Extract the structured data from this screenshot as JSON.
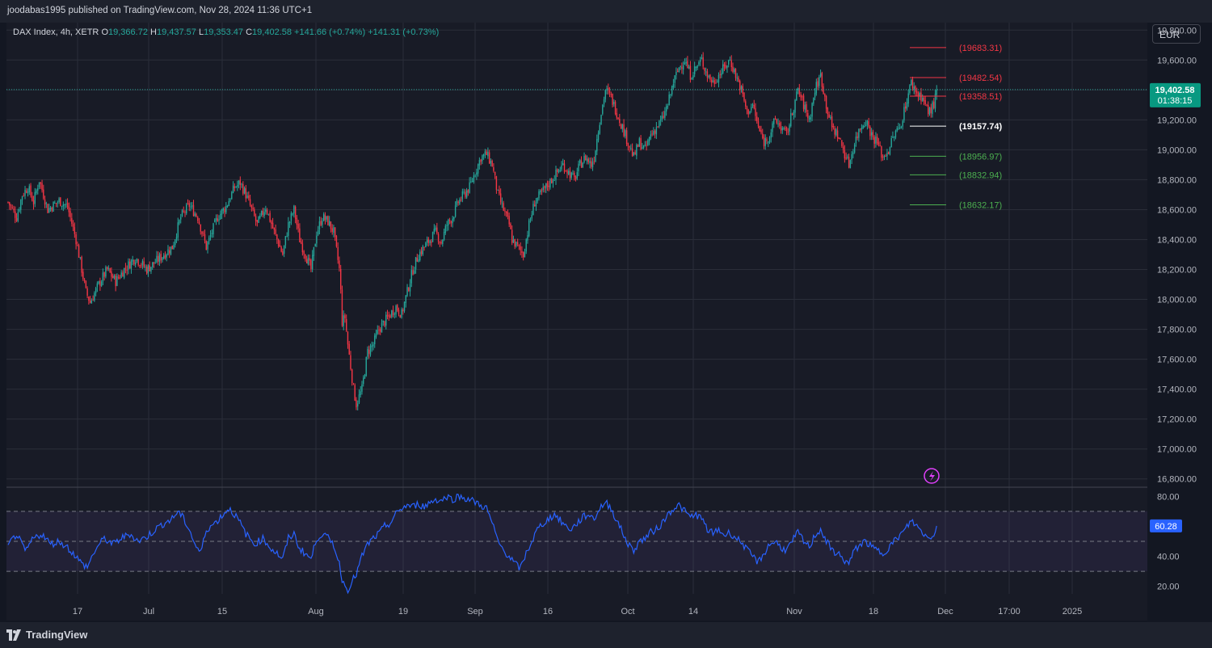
{
  "header": {
    "publisher": "joodabas1995 published on TradingView.com, Nov 28, 2024 11:36 UTC+1"
  },
  "legend": {
    "symbol": "DAX Index, 4h, XETR",
    "open_label": "O",
    "open": "19,366.72",
    "high_label": "H",
    "high": "19,437.57",
    "low_label": "L",
    "low": "19,353.47",
    "close_label": "C",
    "close": "19,402.58",
    "change": "+141.66 (+0.74%)",
    "change2": "+141.31 (+0.73%)"
  },
  "currency": "EUR",
  "footer": {
    "brand": "TradingView"
  },
  "colors": {
    "up": "#26a69a",
    "down": "#f23645",
    "rsi": "#2962ff",
    "bg": "#131722",
    "panel": "#181b26",
    "grid": "#2a2e39",
    "price_badge": "#089981"
  },
  "chart_data": {
    "type": "candlestick",
    "price_axis": {
      "ylim": [
        16750,
        19850
      ],
      "ticks": [
        "16,800.00",
        "17,000.00",
        "17,200.00",
        "17,400.00",
        "17,600.00",
        "17,800.00",
        "18,000.00",
        "18,200.00",
        "18,400.00",
        "18,600.00",
        "18,800.00",
        "19,000.00",
        "19,200.00",
        "19,400.00",
        "19,600.00",
        "19,800.00"
      ]
    },
    "rsi_axis": {
      "ylim": [
        15,
        85
      ],
      "ticks": [
        "20.00",
        "40.00",
        "80.00"
      ],
      "bands": [
        30,
        50,
        70
      ],
      "current": "60.28"
    },
    "last_price": {
      "value": 19402.58,
      "label": "19,402.58",
      "countdown": "01:38:15"
    },
    "x_tick_labels": [
      "17",
      "Jul",
      "15",
      "Aug",
      "19",
      "Sep",
      "16",
      "Oct",
      "14",
      "Nov",
      "18",
      "Dec",
      "17:00",
      "2025"
    ],
    "levels": [
      {
        "value": 19683.31,
        "label": "(19683.31)",
        "color": "#f23645"
      },
      {
        "value": 19482.54,
        "label": "(19482.54)",
        "color": "#f23645"
      },
      {
        "value": 19358.51,
        "label": "(19358.51)",
        "color": "#f23645"
      },
      {
        "value": 19157.74,
        "label": "(19157.74)",
        "color": "#ffffff"
      },
      {
        "value": 18956.97,
        "label": "(18956.97)",
        "color": "#4caf50"
      },
      {
        "value": 18832.94,
        "label": "(18832.94)",
        "color": "#4caf50"
      },
      {
        "value": 18632.17,
        "label": "(18632.17)",
        "color": "#4caf50"
      }
    ],
    "close_path": [
      [
        0,
        18650
      ],
      [
        6,
        18550
      ],
      [
        10,
        18700
      ],
      [
        14,
        18750
      ],
      [
        18,
        18650
      ],
      [
        22,
        18800
      ],
      [
        28,
        18600
      ],
      [
        36,
        18660
      ],
      [
        42,
        18620
      ],
      [
        48,
        18400
      ],
      [
        55,
        18050
      ],
      [
        58,
        17980
      ],
      [
        64,
        18100
      ],
      [
        70,
        18200
      ],
      [
        76,
        18120
      ],
      [
        82,
        18200
      ],
      [
        90,
        18280
      ],
      [
        98,
        18200
      ],
      [
        104,
        18250
      ],
      [
        110,
        18300
      ],
      [
        116,
        18350
      ],
      [
        122,
        18550
      ],
      [
        128,
        18630
      ],
      [
        134,
        18550
      ],
      [
        140,
        18350
      ],
      [
        148,
        18550
      ],
      [
        154,
        18620
      ],
      [
        160,
        18750
      ],
      [
        164,
        18780
      ],
      [
        168,
        18700
      ],
      [
        172,
        18600
      ],
      [
        176,
        18500
      ],
      [
        182,
        18620
      ],
      [
        188,
        18450
      ],
      [
        194,
        18300
      ],
      [
        198,
        18500
      ],
      [
        202,
        18600
      ],
      [
        206,
        18400
      ],
      [
        210,
        18300
      ],
      [
        214,
        18200
      ],
      [
        218,
        18450
      ],
      [
        222,
        18550
      ],
      [
        226,
        18520
      ],
      [
        230,
        18450
      ],
      [
        234,
        18200
      ],
      [
        235,
        18050
      ],
      [
        236,
        17850
      ],
      [
        238,
        17880
      ],
      [
        240,
        17700
      ],
      [
        244,
        17400
      ],
      [
        246,
        17300
      ],
      [
        250,
        17400
      ],
      [
        254,
        17650
      ],
      [
        258,
        17700
      ],
      [
        262,
        17800
      ],
      [
        266,
        17850
      ],
      [
        270,
        17900
      ],
      [
        274,
        17950
      ],
      [
        278,
        17900
      ],
      [
        282,
        18050
      ],
      [
        286,
        18200
      ],
      [
        290,
        18300
      ],
      [
        294,
        18350
      ],
      [
        298,
        18400
      ],
      [
        302,
        18450
      ],
      [
        306,
        18380
      ],
      [
        310,
        18500
      ],
      [
        314,
        18550
      ],
      [
        318,
        18650
      ],
      [
        322,
        18700
      ],
      [
        326,
        18750
      ],
      [
        330,
        18850
      ],
      [
        334,
        18950
      ],
      [
        338,
        18970
      ],
      [
        342,
        18900
      ],
      [
        344,
        18800
      ],
      [
        346,
        18700
      ],
      [
        350,
        18600
      ],
      [
        354,
        18500
      ],
      [
        356,
        18400
      ],
      [
        360,
        18350
      ],
      [
        364,
        18300
      ],
      [
        368,
        18500
      ],
      [
        372,
        18650
      ],
      [
        376,
        18700
      ],
      [
        380,
        18750
      ],
      [
        384,
        18800
      ],
      [
        388,
        18850
      ],
      [
        392,
        18900
      ],
      [
        396,
        18850
      ],
      [
        400,
        18800
      ],
      [
        404,
        18900
      ],
      [
        408,
        18950
      ],
      [
        412,
        18900
      ],
      [
        414,
        18950
      ],
      [
        418,
        19200
      ],
      [
        422,
        19400
      ],
      [
        426,
        19350
      ],
      [
        430,
        19250
      ],
      [
        434,
        19150
      ],
      [
        438,
        19050
      ],
      [
        442,
        18950
      ],
      [
        446,
        19050
      ],
      [
        450,
        19000
      ],
      [
        454,
        19100
      ],
      [
        458,
        19150
      ],
      [
        462,
        19200
      ],
      [
        466,
        19300
      ],
      [
        470,
        19450
      ],
      [
        474,
        19550
      ],
      [
        478,
        19600
      ],
      [
        482,
        19500
      ],
      [
        486,
        19550
      ],
      [
        490,
        19600
      ],
      [
        494,
        19500
      ],
      [
        498,
        19450
      ],
      [
        502,
        19500
      ],
      [
        506,
        19550
      ],
      [
        510,
        19600
      ],
      [
        514,
        19500
      ],
      [
        518,
        19400
      ],
      [
        522,
        19250
      ],
      [
        526,
        19300
      ],
      [
        530,
        19150
      ],
      [
        534,
        19050
      ],
      [
        538,
        19100
      ],
      [
        542,
        19200
      ],
      [
        546,
        19150
      ],
      [
        550,
        19100
      ],
      [
        554,
        19250
      ],
      [
        558,
        19400
      ],
      [
        562,
        19300
      ],
      [
        566,
        19200
      ],
      [
        570,
        19400
      ],
      [
        574,
        19500
      ],
      [
        578,
        19300
      ],
      [
        582,
        19150
      ],
      [
        586,
        19100
      ],
      [
        590,
        19000
      ],
      [
        594,
        18900
      ],
      [
        598,
        19050
      ],
      [
        602,
        19150
      ],
      [
        606,
        19200
      ],
      [
        610,
        19100
      ],
      [
        614,
        19050
      ],
      [
        618,
        18950
      ],
      [
        622,
        19000
      ],
      [
        626,
        19100
      ],
      [
        630,
        19150
      ],
      [
        634,
        19300
      ],
      [
        638,
        19450
      ],
      [
        642,
        19380
      ],
      [
        646,
        19350
      ],
      [
        650,
        19250
      ],
      [
        654,
        19300
      ],
      [
        656,
        19402.58
      ]
    ],
    "rsi_path": [
      [
        0,
        47
      ],
      [
        6,
        55
      ],
      [
        12,
        43
      ],
      [
        18,
        52
      ],
      [
        24,
        55
      ],
      [
        30,
        48
      ],
      [
        36,
        50
      ],
      [
        42,
        46
      ],
      [
        48,
        40
      ],
      [
        52,
        35
      ],
      [
        56,
        33
      ],
      [
        62,
        45
      ],
      [
        68,
        52
      ],
      [
        74,
        48
      ],
      [
        80,
        52
      ],
      [
        86,
        55
      ],
      [
        92,
        50
      ],
      [
        98,
        53
      ],
      [
        104,
        58
      ],
      [
        110,
        62
      ],
      [
        116,
        65
      ],
      [
        120,
        70
      ],
      [
        124,
        65
      ],
      [
        128,
        58
      ],
      [
        132,
        48
      ],
      [
        136,
        42
      ],
      [
        140,
        58
      ],
      [
        146,
        62
      ],
      [
        152,
        68
      ],
      [
        156,
        72
      ],
      [
        160,
        68
      ],
      [
        164,
        62
      ],
      [
        168,
        55
      ],
      [
        174,
        48
      ],
      [
        180,
        52
      ],
      [
        186,
        45
      ],
      [
        190,
        42
      ],
      [
        194,
        38
      ],
      [
        198,
        52
      ],
      [
        202,
        55
      ],
      [
        206,
        45
      ],
      [
        210,
        42
      ],
      [
        214,
        38
      ],
      [
        218,
        52
      ],
      [
        222,
        55
      ],
      [
        226,
        52
      ],
      [
        230,
        48
      ],
      [
        234,
        35
      ],
      [
        236,
        25
      ],
      [
        238,
        20
      ],
      [
        240,
        18
      ],
      [
        242,
        22
      ],
      [
        246,
        28
      ],
      [
        250,
        40
      ],
      [
        254,
        48
      ],
      [
        258,
        52
      ],
      [
        262,
        55
      ],
      [
        266,
        60
      ],
      [
        270,
        62
      ],
      [
        274,
        68
      ],
      [
        278,
        72
      ],
      [
        282,
        74
      ],
      [
        286,
        73
      ],
      [
        290,
        75
      ],
      [
        294,
        73
      ],
      [
        298,
        76
      ],
      [
        302,
        78
      ],
      [
        306,
        77
      ],
      [
        310,
        80
      ],
      [
        314,
        78
      ],
      [
        318,
        80
      ],
      [
        322,
        79
      ],
      [
        326,
        78
      ],
      [
        330,
        76
      ],
      [
        334,
        74
      ],
      [
        338,
        72
      ],
      [
        342,
        62
      ],
      [
        346,
        50
      ],
      [
        350,
        44
      ],
      [
        354,
        40
      ],
      [
        358,
        35
      ],
      [
        362,
        32
      ],
      [
        366,
        42
      ],
      [
        370,
        50
      ],
      [
        374,
        58
      ],
      [
        378,
        62
      ],
      [
        382,
        65
      ],
      [
        386,
        68
      ],
      [
        390,
        64
      ],
      [
        394,
        60
      ],
      [
        398,
        58
      ],
      [
        402,
        62
      ],
      [
        406,
        66
      ],
      [
        410,
        68
      ],
      [
        414,
        65
      ],
      [
        418,
        72
      ],
      [
        422,
        76
      ],
      [
        426,
        72
      ],
      [
        430,
        64
      ],
      [
        434,
        56
      ],
      [
        438,
        48
      ],
      [
        442,
        44
      ],
      [
        446,
        50
      ],
      [
        450,
        52
      ],
      [
        454,
        56
      ],
      [
        458,
        58
      ],
      [
        462,
        62
      ],
      [
        466,
        68
      ],
      [
        470,
        72
      ],
      [
        474,
        74
      ],
      [
        478,
        70
      ],
      [
        482,
        66
      ],
      [
        486,
        68
      ],
      [
        490,
        65
      ],
      [
        494,
        58
      ],
      [
        498,
        55
      ],
      [
        502,
        58
      ],
      [
        506,
        54
      ],
      [
        510,
        56
      ],
      [
        514,
        52
      ],
      [
        518,
        50
      ],
      [
        522,
        44
      ],
      [
        526,
        40
      ],
      [
        530,
        36
      ],
      [
        534,
        42
      ],
      [
        538,
        48
      ],
      [
        542,
        50
      ],
      [
        546,
        46
      ],
      [
        550,
        44
      ],
      [
        554,
        50
      ],
      [
        558,
        56
      ],
      [
        562,
        50
      ],
      [
        566,
        46
      ],
      [
        570,
        54
      ],
      [
        574,
        58
      ],
      [
        578,
        50
      ],
      [
        582,
        44
      ],
      [
        586,
        42
      ],
      [
        590,
        38
      ],
      [
        594,
        35
      ],
      [
        598,
        44
      ],
      [
        602,
        48
      ],
      [
        606,
        50
      ],
      [
        610,
        46
      ],
      [
        614,
        44
      ],
      [
        618,
        42
      ],
      [
        622,
        46
      ],
      [
        626,
        50
      ],
      [
        630,
        54
      ],
      [
        634,
        58
      ],
      [
        638,
        64
      ],
      [
        642,
        60
      ],
      [
        646,
        56
      ],
      [
        650,
        52
      ],
      [
        654,
        55
      ],
      [
        656,
        60.28
      ]
    ]
  }
}
